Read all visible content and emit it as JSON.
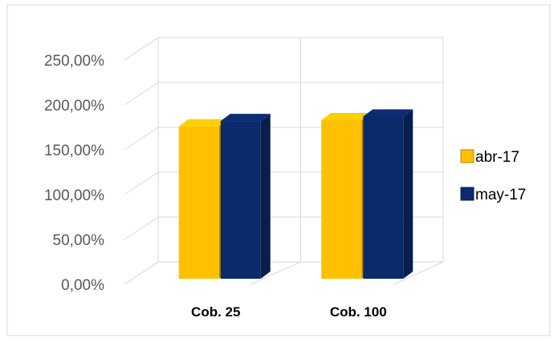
{
  "chart_data": {
    "type": "bar",
    "categories": [
      "Cob. 25",
      "Cob. 100"
    ],
    "series": [
      {
        "name": "abr-17",
        "values": [
          1.85,
          1.92
        ],
        "color": "#FFC000"
      },
      {
        "name": "may-17",
        "values": [
          1.91,
          1.96
        ],
        "color": "#0B2A6B"
      }
    ],
    "ylim": [
      0,
      2.5
    ],
    "y_ticks": [
      "0,00%",
      "50,00%",
      "100,00%",
      "150,00%",
      "200,00%",
      "250,00%"
    ],
    "grid": true,
    "legend_position": "right",
    "title": "",
    "xlabel": "",
    "ylabel": ""
  }
}
